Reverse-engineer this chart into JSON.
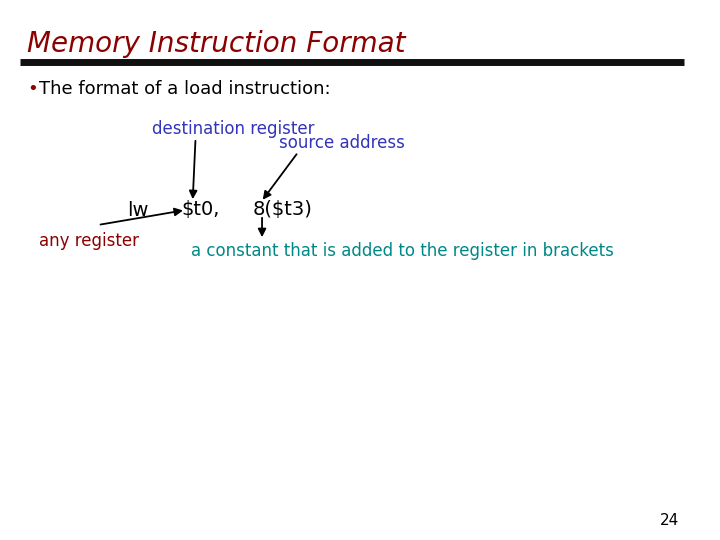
{
  "title": "Memory Instruction Format",
  "title_color": "#8B0000",
  "title_fontsize": 20,
  "background_color": "#ffffff",
  "bullet_text": " The format of a load instruction:",
  "bullet_color": "#000000",
  "bullet_fontsize": 13,
  "bullet_dot": "•",
  "bullet_dot_color": "#8B0000",
  "label_dest_reg": "destination register",
  "label_dest_color": "#3333bb",
  "label_source_addr": "source address",
  "label_source_color": "#3333bb",
  "label_any_reg": "any register",
  "label_any_color": "#8B0000",
  "label_constant": "a constant that is added to the register in brackets",
  "label_constant_color": "#008888",
  "instr_lw": "lw",
  "instr_t0": "$t0,",
  "instr_8t3": "8($t3)",
  "instr_color": "#000000",
  "instr_fontsize": 14,
  "page_number": "24",
  "separator_color": "#111111"
}
